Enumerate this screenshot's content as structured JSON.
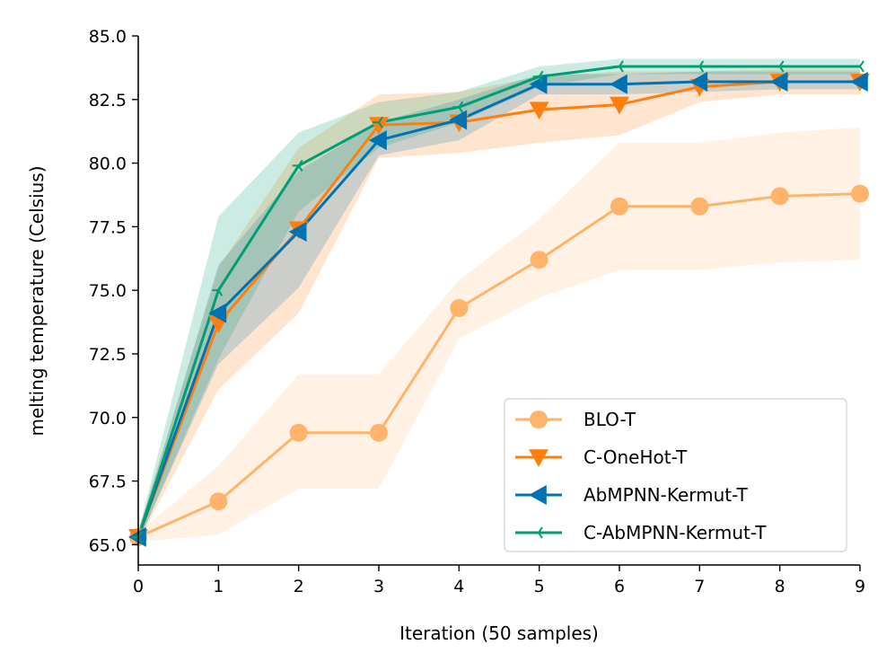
{
  "chart_data": {
    "type": "line",
    "title": "",
    "xlabel": "Iteration (50 samples)",
    "ylabel": "melting temperature (Celsius)",
    "xlim": [
      0,
      9
    ],
    "ylim": [
      64.2,
      85.0
    ],
    "xticks": [
      "0",
      "1",
      "2",
      "3",
      "4",
      "5",
      "6",
      "7",
      "8",
      "9"
    ],
    "yticks": [
      "65.0",
      "67.5",
      "70.0",
      "72.5",
      "75.0",
      "77.5",
      "80.0",
      "82.5",
      "85.0"
    ],
    "ytick_values": [
      65.0,
      67.5,
      70.0,
      72.5,
      75.0,
      77.5,
      80.0,
      82.5,
      85.0
    ],
    "x": [
      0,
      1,
      2,
      3,
      4,
      5,
      6,
      7,
      8,
      9
    ],
    "legend_position": "lower-right",
    "series": [
      {
        "name": "BLO-T",
        "color": "#ffb36b",
        "marker": "circle",
        "values": [
          65.3,
          66.7,
          69.4,
          69.4,
          74.3,
          76.2,
          78.3,
          78.3,
          78.7,
          78.8
        ],
        "lower": [
          65.1,
          65.4,
          67.2,
          67.2,
          73.1,
          74.7,
          75.8,
          75.8,
          76.1,
          76.2
        ],
        "upper": [
          65.5,
          68.1,
          71.7,
          71.7,
          75.4,
          77.8,
          80.8,
          80.8,
          81.2,
          81.4
        ]
      },
      {
        "name": "C-OneHot-T",
        "color": "#ff7f0e",
        "marker": "triangle-down",
        "values": [
          65.3,
          73.7,
          77.4,
          81.5,
          81.6,
          82.1,
          82.3,
          83.0,
          83.2,
          83.2
        ],
        "lower": [
          65.1,
          71.1,
          74.1,
          80.2,
          80.4,
          80.8,
          81.1,
          82.4,
          82.7,
          82.7
        ],
        "upper": [
          65.5,
          75.9,
          80.6,
          82.7,
          82.8,
          83.4,
          83.6,
          83.6,
          83.7,
          83.7
        ]
      },
      {
        "name": "AbMPNN-Kermut-T",
        "color": "#0072b2",
        "marker": "triangle-left",
        "values": [
          65.3,
          74.1,
          77.3,
          80.9,
          81.7,
          83.1,
          83.1,
          83.2,
          83.2,
          83.2
        ],
        "lower": [
          65.1,
          72.1,
          75.1,
          80.3,
          80.9,
          82.7,
          82.7,
          82.8,
          82.9,
          82.9
        ],
        "upper": [
          65.5,
          76.0,
          79.7,
          81.6,
          82.5,
          83.5,
          83.5,
          83.6,
          83.6,
          83.6
        ]
      },
      {
        "name": "C-AbMPNN-Kermut-T",
        "color": "#009e73",
        "marker": "tri-left",
        "values": [
          65.3,
          75.0,
          79.9,
          81.6,
          82.2,
          83.4,
          83.8,
          83.8,
          83.8,
          83.8
        ],
        "lower": [
          65.1,
          72.3,
          78.1,
          80.6,
          81.6,
          83.0,
          83.5,
          83.5,
          83.5,
          83.5
        ],
        "upper": [
          65.5,
          77.9,
          81.2,
          82.4,
          82.8,
          83.8,
          84.1,
          84.1,
          84.1,
          84.1
        ]
      }
    ]
  }
}
